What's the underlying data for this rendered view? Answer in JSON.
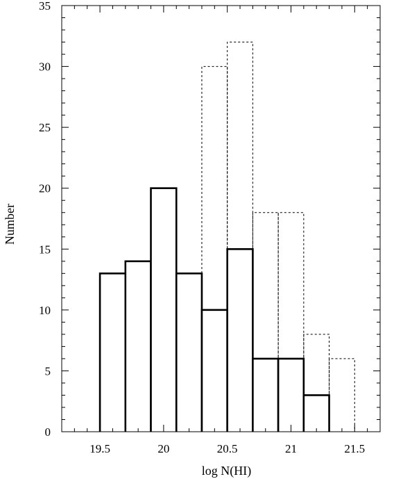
{
  "chart_data": {
    "type": "bar",
    "xlabel": "log N(HI)",
    "ylabel": "Number",
    "xlim": [
      19.2,
      21.7
    ],
    "ylim": [
      0,
      35
    ],
    "xticks": [
      "19.5",
      "20",
      "20.5",
      "21",
      "21.5"
    ],
    "yticks": [
      "0",
      "5",
      "10",
      "15",
      "20",
      "25",
      "30",
      "35"
    ],
    "grid": false,
    "series": [
      {
        "style": "solid",
        "bins": [
          {
            "x0": 19.5,
            "x1": 19.7,
            "value": 13
          },
          {
            "x0": 19.7,
            "x1": 19.9,
            "value": 14
          },
          {
            "x0": 19.9,
            "x1": 20.1,
            "value": 20
          },
          {
            "x0": 20.1,
            "x1": 20.3,
            "value": 13
          },
          {
            "x0": 20.3,
            "x1": 20.5,
            "value": 10
          },
          {
            "x0": 20.5,
            "x1": 20.7,
            "value": 15
          },
          {
            "x0": 20.7,
            "x1": 20.9,
            "value": 6
          },
          {
            "x0": 20.9,
            "x1": 21.1,
            "value": 6
          },
          {
            "x0": 21.1,
            "x1": 21.3,
            "value": 3
          }
        ]
      },
      {
        "style": "dashed",
        "bins": [
          {
            "x0": 20.3,
            "x1": 20.5,
            "value": 30
          },
          {
            "x0": 20.5,
            "x1": 20.7,
            "value": 32
          },
          {
            "x0": 20.7,
            "x1": 20.9,
            "value": 18
          },
          {
            "x0": 20.9,
            "x1": 21.1,
            "value": 18
          },
          {
            "x0": 21.1,
            "x1": 21.3,
            "value": 8
          },
          {
            "x0": 21.3,
            "x1": 21.5,
            "value": 6
          }
        ]
      }
    ]
  }
}
